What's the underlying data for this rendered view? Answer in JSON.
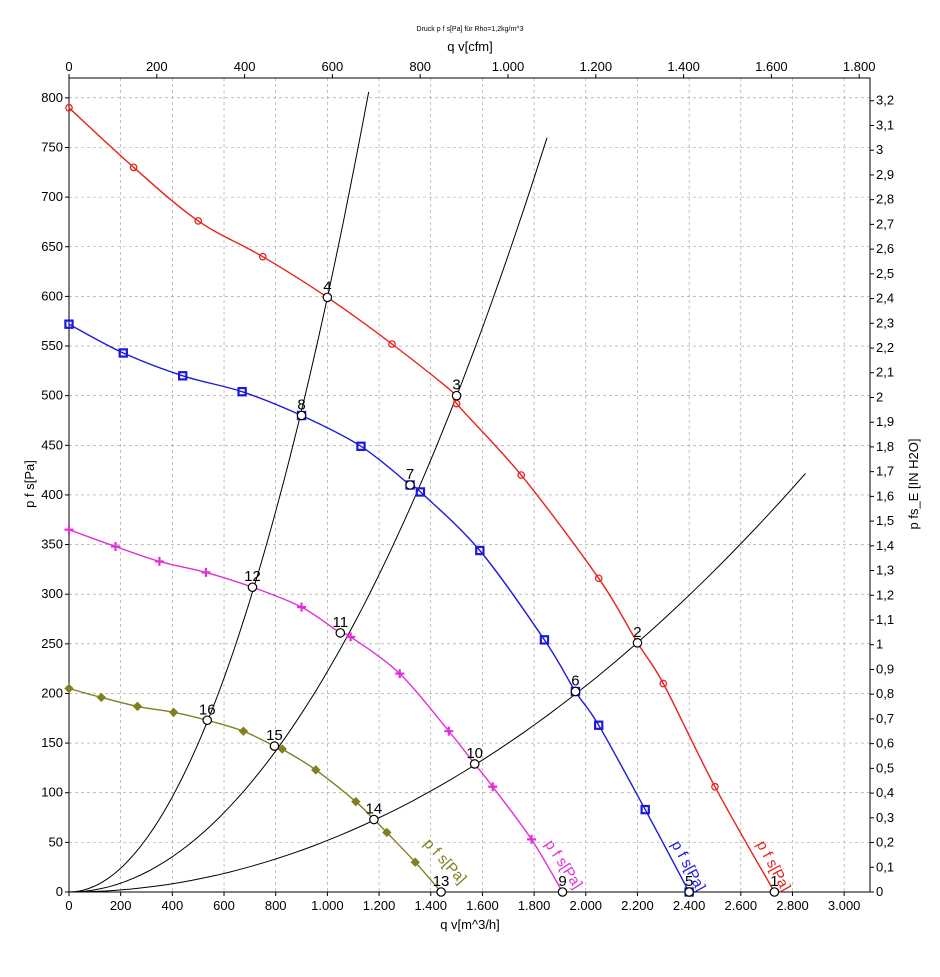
{
  "chart_data": {
    "type": "line",
    "title": "Druck p f s[Pa] für Rho=1,2kg/m^3",
    "xlabel": "q v[m^3/h]",
    "x2label": "q v[cfm]",
    "ylabel": "p f s[Pa]",
    "y2label": "p fs_E [IN H2O]",
    "xlim": [
      0,
      3100
    ],
    "ylim": [
      0,
      820
    ],
    "x2lim": [
      0,
      1824.6
    ],
    "y2lim": [
      0,
      3.292
    ],
    "grid": true,
    "x_ticks": [
      "0",
      "200",
      "400",
      "600",
      "800",
      "1.000",
      "1.200",
      "1.400",
      "1.600",
      "1.800",
      "2.000",
      "2.200",
      "2.400",
      "2.600",
      "2.800",
      "3.000"
    ],
    "y_ticks": [
      "0",
      "50",
      "100",
      "150",
      "200",
      "250",
      "300",
      "350",
      "400",
      "450",
      "500",
      "550",
      "600",
      "650",
      "700",
      "750",
      "800"
    ],
    "x2_ticks": [
      "0",
      "200",
      "400",
      "600",
      "800",
      "1.000",
      "1.200",
      "1.400",
      "1.600",
      "1.800"
    ],
    "y2_ticks": [
      "0",
      "0,1",
      "0,2",
      "0,3",
      "0,4",
      "0,5",
      "0,6",
      "0,7",
      "0,8",
      "0,9",
      "1",
      "1,1",
      "1,2",
      "1,3",
      "1,4",
      "1,5",
      "1,6",
      "1,7",
      "1,8",
      "1,9",
      "2",
      "2,1",
      "2,2",
      "2,3",
      "2,4",
      "2,5",
      "2,6",
      "2,7",
      "2,8",
      "2,9",
      "3",
      "3,1",
      "3,2"
    ],
    "series": [
      {
        "label": "p f s[Pa]",
        "color": "#e8231c",
        "marker": "circle",
        "points": [
          [
            0,
            790
          ],
          [
            250,
            730
          ],
          [
            500,
            676
          ],
          [
            750,
            640
          ],
          [
            1000,
            599
          ],
          [
            1250,
            552
          ],
          [
            1500,
            500
          ],
          [
            1500,
            492
          ],
          [
            1750,
            420
          ],
          [
            2050,
            316
          ],
          [
            2200,
            251
          ],
          [
            2300,
            210
          ],
          [
            2500,
            106
          ],
          [
            2730,
            0
          ]
        ]
      },
      {
        "label": "p f s[Pa]",
        "color": "#1a1adc",
        "marker": "square",
        "points": [
          [
            0,
            572
          ],
          [
            210,
            543
          ],
          [
            440,
            520
          ],
          [
            670,
            504
          ],
          [
            900,
            480
          ],
          [
            1130,
            449
          ],
          [
            1320,
            410
          ],
          [
            1360,
            403
          ],
          [
            1590,
            344
          ],
          [
            1840,
            254
          ],
          [
            1960,
            202
          ],
          [
            2050,
            168
          ],
          [
            2230,
            83
          ],
          [
            2400,
            0
          ]
        ]
      },
      {
        "label": "p f s[Pa]",
        "color": "#e030d8",
        "marker": "plus",
        "points": [
          [
            0,
            365
          ],
          [
            180,
            348
          ],
          [
            350,
            333
          ],
          [
            530,
            322
          ],
          [
            710,
            307
          ],
          [
            900,
            287
          ],
          [
            1050,
            261
          ],
          [
            1090,
            257
          ],
          [
            1280,
            220
          ],
          [
            1470,
            162
          ],
          [
            1570,
            129
          ],
          [
            1640,
            106
          ],
          [
            1790,
            53
          ],
          [
            1910,
            0
          ]
        ]
      },
      {
        "label": "p f s[Pa]",
        "color": "#808020",
        "marker": "diamond",
        "points": [
          [
            0,
            205
          ],
          [
            125,
            196
          ],
          [
            265,
            187
          ],
          [
            405,
            181
          ],
          [
            535,
            173
          ],
          [
            675,
            162
          ],
          [
            795,
            147
          ],
          [
            825,
            144
          ],
          [
            955,
            123
          ],
          [
            1110,
            91
          ],
          [
            1180,
            73
          ],
          [
            1230,
            60
          ],
          [
            1340,
            30
          ],
          [
            1440,
            0
          ]
        ]
      }
    ],
    "system_curves": [
      {
        "k_pa_per_m3h2": 0.000599,
        "qmax": 1160
      },
      {
        "k_pa_per_m3h2": 0.000222,
        "qmax": 1850
      },
      {
        "k_pa_per_m3h2": 5.19e-05,
        "qmax": 2850
      }
    ],
    "operating_points": [
      {
        "label": "1",
        "x": 2730,
        "y": 0
      },
      {
        "label": "2",
        "x": 2200,
        "y": 251
      },
      {
        "label": "3",
        "x": 1500,
        "y": 500
      },
      {
        "label": "4",
        "x": 1000,
        "y": 599
      },
      {
        "label": "5",
        "x": 2400,
        "y": 0
      },
      {
        "label": "6",
        "x": 1960,
        "y": 202
      },
      {
        "label": "7",
        "x": 1320,
        "y": 410
      },
      {
        "label": "8",
        "x": 900,
        "y": 480
      },
      {
        "label": "9",
        "x": 1910,
        "y": 0
      },
      {
        "label": "10",
        "x": 1570,
        "y": 129
      },
      {
        "label": "11",
        "x": 1050,
        "y": 261
      },
      {
        "label": "12",
        "x": 710,
        "y": 307
      },
      {
        "label": "13",
        "x": 1440,
        "y": 0
      },
      {
        "label": "14",
        "x": 1180,
        "y": 73
      },
      {
        "label": "15",
        "x": 795,
        "y": 147
      },
      {
        "label": "16",
        "x": 535,
        "y": 173
      }
    ]
  }
}
